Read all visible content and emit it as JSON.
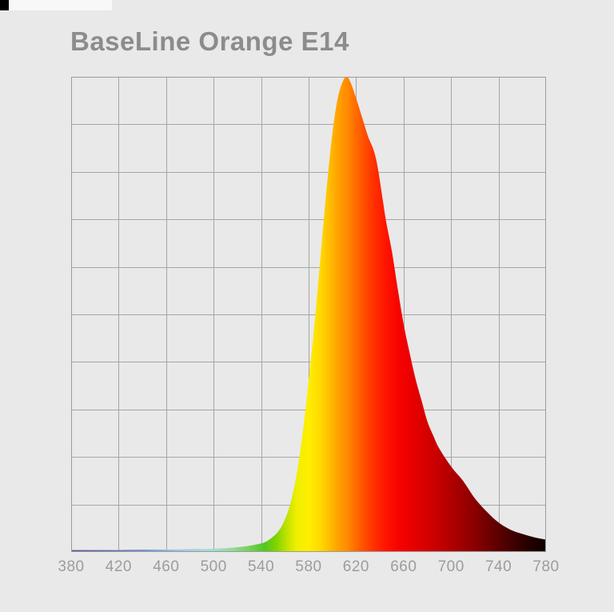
{
  "page": {
    "background": "#e9e9e9",
    "corner_mark_color": "#000000",
    "top_strip_color": "#f8f8f8"
  },
  "header": {
    "title": "BaseLine Orange E14",
    "title_color": "#8c8c8c"
  },
  "chart": {
    "grid_color": "#a5a5a5",
    "border_color": "#9b9b9b",
    "axis_label_color": "#9c9c9c",
    "x_ticks": [
      "380",
      "420",
      "460",
      "500",
      "540",
      "580",
      "620",
      "660",
      "700",
      "740",
      "780"
    ]
  },
  "chart_data": {
    "type": "area",
    "title": "BaseLine Orange E14",
    "xlabel": "",
    "ylabel": "",
    "xlim": [
      380,
      780
    ],
    "ylim": [
      0,
      1
    ],
    "grid": true,
    "grid_divisions": [
      10,
      10
    ],
    "peak_nm": 611,
    "x_tick_labels": [
      "380",
      "420",
      "460",
      "500",
      "540",
      "580",
      "620",
      "660",
      "700",
      "740",
      "780"
    ],
    "x": [
      380,
      400,
      420,
      440,
      460,
      480,
      500,
      510,
      520,
      530,
      540,
      545,
      550,
      555,
      560,
      565,
      570,
      575,
      580,
      585,
      590,
      595,
      600,
      605,
      611,
      615,
      620,
      625,
      630,
      637,
      645,
      650,
      655,
      660,
      665,
      670,
      675,
      680,
      685,
      690,
      700,
      710,
      720,
      730,
      740,
      750,
      760,
      770,
      780
    ],
    "values": [
      0.004,
      0.004,
      0.004,
      0.005,
      0.005,
      0.006,
      0.007,
      0.008,
      0.01,
      0.013,
      0.018,
      0.023,
      0.032,
      0.045,
      0.068,
      0.105,
      0.165,
      0.25,
      0.36,
      0.48,
      0.62,
      0.76,
      0.88,
      0.96,
      1.0,
      0.99,
      0.955,
      0.915,
      0.875,
      0.825,
      0.7,
      0.635,
      0.555,
      0.48,
      0.42,
      0.365,
      0.32,
      0.275,
      0.245,
      0.218,
      0.18,
      0.15,
      0.113,
      0.085,
      0.062,
      0.047,
      0.038,
      0.031,
      0.026
    ],
    "gradient_stops": [
      {
        "nm": 380,
        "color": "#57508e"
      },
      {
        "nm": 415,
        "color": "#5f6cb4"
      },
      {
        "nm": 445,
        "color": "#7d9ad6"
      },
      {
        "nm": 470,
        "color": "#9cc4e4"
      },
      {
        "nm": 495,
        "color": "#a8ddd8"
      },
      {
        "nm": 515,
        "color": "#97d9a0"
      },
      {
        "nm": 530,
        "color": "#77cf5a"
      },
      {
        "nm": 543,
        "color": "#52c71e"
      },
      {
        "nm": 553,
        "color": "#83d400"
      },
      {
        "nm": 562,
        "color": "#c3e300"
      },
      {
        "nm": 570,
        "color": "#f0ef00"
      },
      {
        "nm": 580,
        "color": "#ffee00"
      },
      {
        "nm": 590,
        "color": "#ffd900"
      },
      {
        "nm": 598,
        "color": "#ffbc00"
      },
      {
        "nm": 605,
        "color": "#ffa000"
      },
      {
        "nm": 612,
        "color": "#ff8d00"
      },
      {
        "nm": 620,
        "color": "#ff6a00"
      },
      {
        "nm": 628,
        "color": "#ff4a00"
      },
      {
        "nm": 636,
        "color": "#ff2d00"
      },
      {
        "nm": 645,
        "color": "#ff1400"
      },
      {
        "nm": 655,
        "color": "#f70300"
      },
      {
        "nm": 668,
        "color": "#e70000"
      },
      {
        "nm": 682,
        "color": "#d20000"
      },
      {
        "nm": 695,
        "color": "#bb0000"
      },
      {
        "nm": 708,
        "color": "#a10000"
      },
      {
        "nm": 722,
        "color": "#850000"
      },
      {
        "nm": 735,
        "color": "#670000"
      },
      {
        "nm": 748,
        "color": "#4a0000"
      },
      {
        "nm": 760,
        "color": "#310000"
      },
      {
        "nm": 770,
        "color": "#1d0000"
      },
      {
        "nm": 780,
        "color": "#0c0000"
      }
    ]
  }
}
